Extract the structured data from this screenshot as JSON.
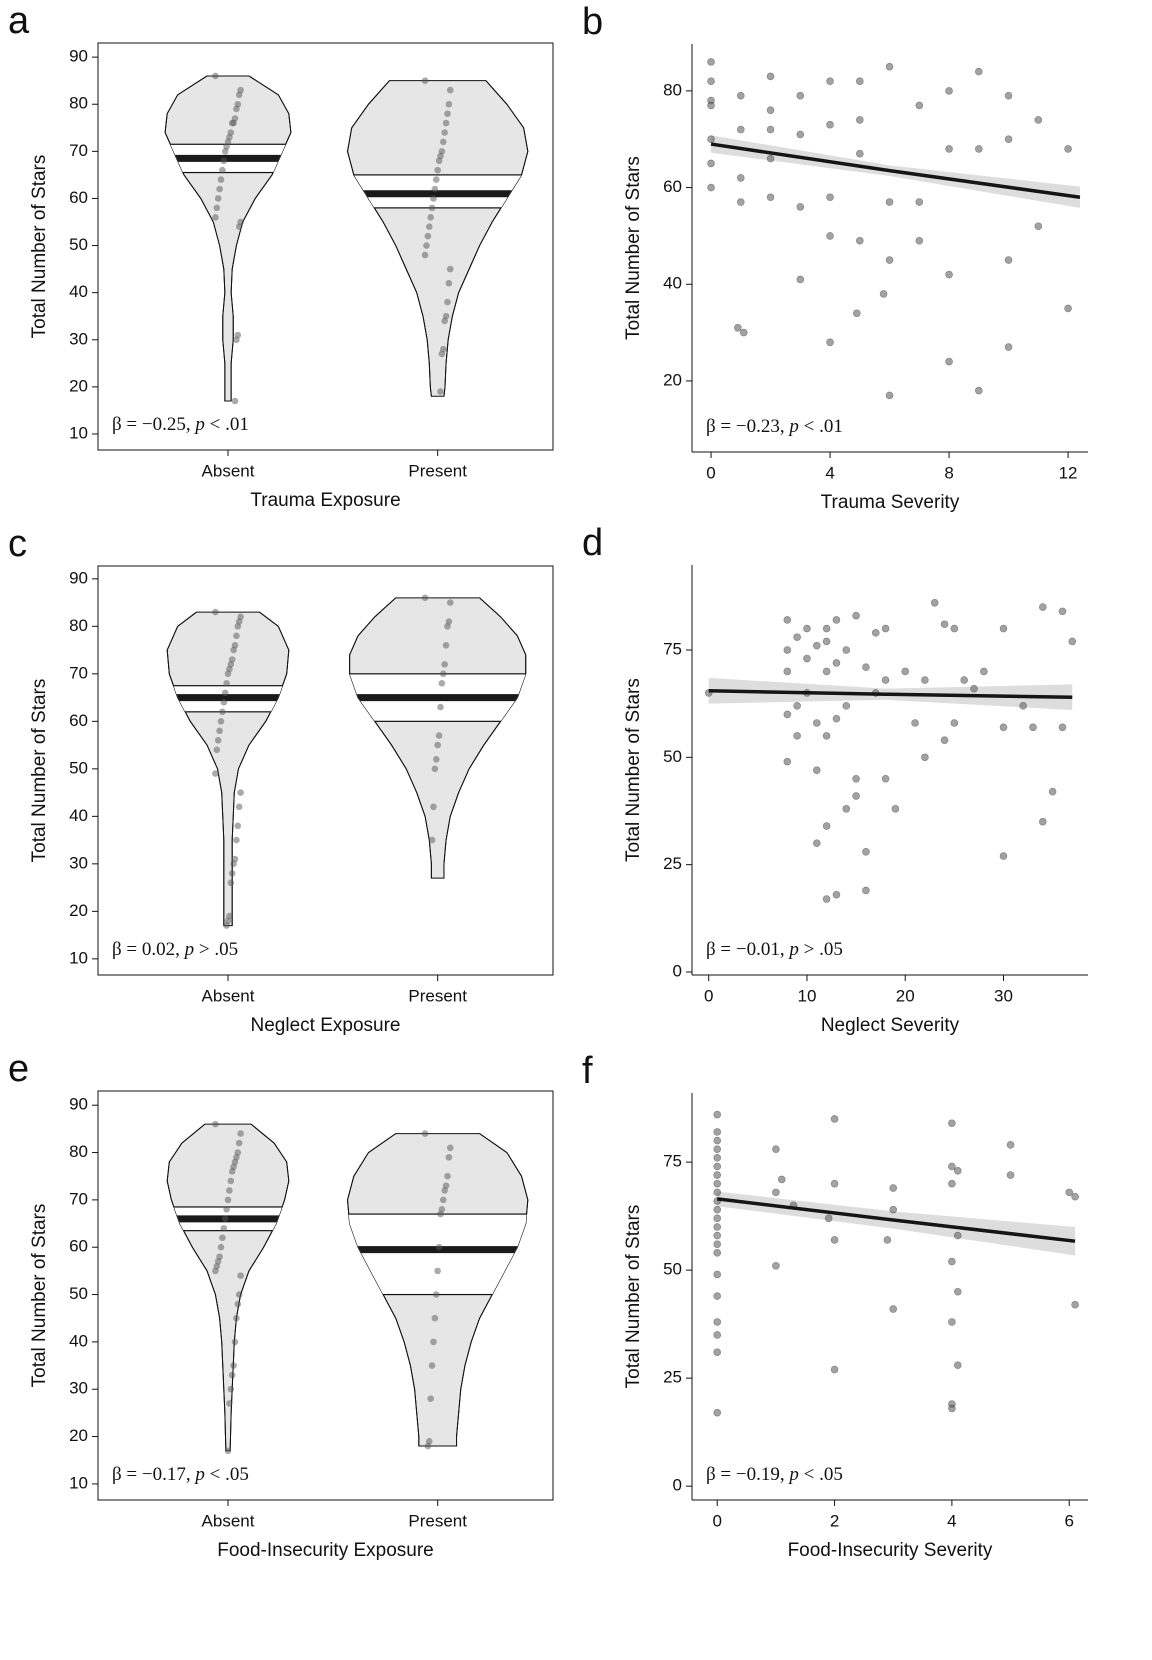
{
  "chart_data": [
    {
      "type": "violin",
      "panel": "a",
      "xlabel": "Trauma Exposure",
      "ylabel": "Total Number of Stars",
      "annotation": [
        "β = −0.25, ",
        "p",
        " < .01"
      ],
      "categories": [
        "Absent",
        "Present"
      ],
      "ylim": [
        6.6,
        93
      ],
      "yticks": [
        10,
        20,
        30,
        40,
        50,
        60,
        70,
        80,
        90
      ],
      "xlim": [
        0.38,
        2.55
      ],
      "violin_color": "#e6e6e6",
      "point_color": "#555555",
      "violins": [
        {
          "profile_y": [
            86,
            82,
            78,
            74,
            70,
            65,
            60,
            55,
            50,
            45,
            40,
            35,
            30,
            25,
            20,
            17
          ],
          "profile_w": [
            0.1,
            0.24,
            0.29,
            0.3,
            0.26,
            0.21,
            0.13,
            0.07,
            0.04,
            0.02,
            0.015,
            0.025,
            0.025,
            0.015,
            0.015,
            0.015
          ],
          "mean": 68.5,
          "ci": [
            65.5,
            71.5
          ],
          "points": [
            86,
            83,
            82,
            80,
            79,
            77,
            76,
            76,
            74,
            73,
            72,
            71,
            70,
            68,
            66,
            64,
            62,
            60,
            58,
            56,
            55,
            54,
            31,
            30,
            17
          ]
        },
        {
          "profile_y": [
            85,
            80,
            75,
            70,
            65,
            60,
            55,
            50,
            45,
            40,
            35,
            30,
            25,
            20,
            18
          ],
          "profile_w": [
            0.23,
            0.33,
            0.41,
            0.43,
            0.4,
            0.33,
            0.26,
            0.2,
            0.15,
            0.1,
            0.07,
            0.05,
            0.04,
            0.035,
            0.03
          ],
          "mean": 61,
          "ci": [
            58,
            65
          ],
          "points": [
            85,
            83,
            80,
            78,
            76,
            74,
            72,
            70,
            69,
            68,
            66,
            64,
            62,
            60,
            58,
            56,
            54,
            52,
            50,
            48,
            45,
            42,
            38,
            35,
            34,
            28,
            27,
            19
          ]
        }
      ]
    },
    {
      "type": "scatter",
      "panel": "b",
      "xlabel": "Trauma Severity",
      "ylabel": "Total Number of Stars",
      "annotation": [
        "β = −0.23, ",
        "p",
        " < .01"
      ],
      "xlim": [
        -0.64,
        12.67
      ],
      "xticks": [
        0,
        4,
        8,
        12
      ],
      "ylim": [
        5.3,
        89.7
      ],
      "yticks": [
        20,
        40,
        60,
        80
      ],
      "point_color": "#555555",
      "band_color": "#d4d4d4",
      "x": [
        0,
        0,
        0,
        0,
        0,
        0,
        0,
        1,
        1,
        1,
        1,
        0.9,
        1.1,
        2,
        2,
        2,
        2,
        2,
        3,
        3,
        3,
        3,
        4,
        4,
        4,
        4,
        4,
        5,
        5,
        5,
        5,
        5.8,
        4.9,
        6,
        6,
        6,
        6,
        7,
        7,
        7,
        8,
        8,
        8,
        8,
        9,
        9,
        9,
        10,
        10,
        10,
        10,
        11,
        11,
        12,
        12
      ],
      "y": [
        82,
        78,
        70,
        65,
        60,
        86,
        77,
        79,
        72,
        62,
        57,
        31,
        30,
        83,
        76,
        72,
        66,
        58,
        79,
        71,
        56,
        41,
        82,
        73,
        58,
        50,
        28,
        82,
        74,
        67,
        49,
        38,
        34,
        85,
        57,
        45,
        17,
        77,
        57,
        49,
        80,
        68,
        42,
        24,
        84,
        68,
        18,
        79,
        70,
        45,
        27,
        74,
        52,
        68,
        35
      ],
      "fit": {
        "x": [
          0,
          6,
          12.4
        ],
        "y": [
          69,
          63.5,
          58
        ],
        "lower": [
          67.2,
          62.4,
          55.8
        ],
        "upper": [
          70.8,
          64.6,
          60.2
        ]
      }
    },
    {
      "type": "violin",
      "panel": "c",
      "xlabel": "Neglect Exposure",
      "ylabel": "Total Number of Stars",
      "annotation": [
        "β = 0.02, ",
        "p",
        " > .05"
      ],
      "categories": [
        "Absent",
        "Present"
      ],
      "ylim": [
        6.6,
        92.7
      ],
      "yticks": [
        10,
        20,
        30,
        40,
        50,
        60,
        70,
        80,
        90
      ],
      "xlim": [
        0.38,
        2.55
      ],
      "violin_color": "#e6e6e6",
      "point_color": "#555555",
      "violins": [
        {
          "profile_y": [
            83,
            80,
            75,
            70,
            65,
            60,
            55,
            50,
            45,
            40,
            35,
            30,
            25,
            20,
            17
          ],
          "profile_w": [
            0.15,
            0.24,
            0.29,
            0.28,
            0.24,
            0.18,
            0.1,
            0.05,
            0.03,
            0.025,
            0.02,
            0.02,
            0.02,
            0.02,
            0.02
          ],
          "mean": 65,
          "ci": [
            62,
            67.5
          ],
          "points": [
            83,
            82,
            81,
            80,
            78,
            76,
            75,
            73,
            72,
            71,
            70,
            68,
            66,
            64,
            62,
            60,
            58,
            56,
            54,
            49,
            45,
            42,
            38,
            35,
            31,
            30,
            28,
            26,
            19,
            18,
            17
          ]
        },
        {
          "profile_y": [
            86,
            82,
            78,
            74,
            70,
            65,
            60,
            55,
            50,
            45,
            40,
            35,
            30,
            27
          ],
          "profile_w": [
            0.2,
            0.3,
            0.38,
            0.42,
            0.42,
            0.38,
            0.3,
            0.22,
            0.15,
            0.1,
            0.06,
            0.04,
            0.03,
            0.03
          ],
          "mean": 65,
          "ci": [
            60,
            70
          ],
          "points": [
            86,
            85,
            81,
            80,
            76,
            72,
            70,
            68,
            63,
            57,
            55,
            52,
            50,
            42,
            35
          ]
        }
      ]
    },
    {
      "type": "scatter",
      "panel": "d",
      "xlabel": "Neglect Severity",
      "ylabel": "Total Number of Stars",
      "annotation": [
        "β = −0.01, ",
        "p",
        " > .05"
      ],
      "xlim": [
        -1.7,
        38.6
      ],
      "xticks": [
        0,
        10,
        20,
        30
      ],
      "ylim": [
        -0.7,
        94.8
      ],
      "yticks": [
        0,
        25,
        50,
        75
      ],
      "point_color": "#555555",
      "band_color": "#d4d4d4",
      "x": [
        0,
        8,
        8,
        8,
        8,
        8,
        9,
        9,
        9,
        10,
        10,
        10,
        11,
        11,
        11,
        11,
        12,
        12,
        12,
        12,
        12,
        12,
        13,
        13,
        13,
        13,
        14,
        14,
        14,
        15,
        15,
        15,
        16,
        16,
        16,
        17,
        17,
        18,
        18,
        18,
        19,
        20,
        21,
        22,
        22,
        23,
        24,
        24,
        25,
        25,
        26,
        27,
        28,
        30,
        30,
        30,
        32,
        33,
        34,
        34,
        35,
        36,
        36,
        37
      ],
      "y": [
        65,
        82,
        75,
        70,
        60,
        49,
        78,
        62,
        55,
        80,
        73,
        65,
        76,
        58,
        47,
        30,
        80,
        77,
        70,
        55,
        34,
        17,
        82,
        72,
        59,
        18,
        75,
        62,
        38,
        83,
        45,
        41,
        71,
        28,
        19,
        79,
        65,
        80,
        68,
        45,
        38,
        70,
        58,
        68,
        50,
        86,
        81,
        54,
        80,
        58,
        68,
        66,
        70,
        80,
        57,
        27,
        62,
        57,
        85,
        35,
        42,
        84,
        57,
        77
      ],
      "fit": {
        "x": [
          0,
          18,
          37
        ],
        "y": [
          65.5,
          64.7,
          64
        ],
        "lower": [
          62.5,
          63.4,
          61
        ],
        "upper": [
          68.5,
          66,
          67
        ]
      }
    },
    {
      "type": "violin",
      "panel": "e",
      "xlabel": "Food-Insecurity Exposure",
      "ylabel": "Total Number of Stars",
      "annotation": [
        "β = −0.17, ",
        "p",
        " < .05"
      ],
      "categories": [
        "Absent",
        "Present"
      ],
      "ylim": [
        6.6,
        93
      ],
      "yticks": [
        10,
        20,
        30,
        40,
        50,
        60,
        70,
        80,
        90
      ],
      "xlim": [
        0.38,
        2.55
      ],
      "violin_color": "#e6e6e6",
      "point_color": "#555555",
      "violins": [
        {
          "profile_y": [
            86,
            82,
            78,
            74,
            70,
            65,
            60,
            55,
            50,
            45,
            40,
            35,
            30,
            25,
            20,
            17
          ],
          "profile_w": [
            0.11,
            0.22,
            0.28,
            0.29,
            0.27,
            0.23,
            0.17,
            0.1,
            0.06,
            0.04,
            0.03,
            0.025,
            0.02,
            0.015,
            0.012,
            0.01
          ],
          "mean": 66,
          "ci": [
            63.5,
            68.5
          ],
          "points": [
            86,
            84,
            82,
            80,
            79,
            78,
            77,
            76,
            74,
            72,
            70,
            68,
            66,
            64,
            62,
            60,
            58,
            57,
            56,
            55,
            54,
            50,
            48,
            45,
            40,
            35,
            33,
            30,
            27,
            17
          ]
        },
        {
          "profile_y": [
            84,
            80,
            75,
            70,
            65,
            60,
            55,
            50,
            45,
            40,
            35,
            30,
            25,
            20,
            18
          ],
          "profile_w": [
            0.2,
            0.33,
            0.4,
            0.43,
            0.42,
            0.38,
            0.32,
            0.26,
            0.2,
            0.16,
            0.13,
            0.11,
            0.1,
            0.09,
            0.09
          ],
          "mean": 59.5,
          "ci": [
            50,
            67
          ],
          "points": [
            84,
            81,
            79,
            75,
            73,
            72,
            70,
            68,
            67,
            60,
            55,
            50,
            45,
            40,
            35,
            28,
            19,
            18
          ]
        }
      ]
    },
    {
      "type": "scatter",
      "panel": "f",
      "xlabel": "Food-Insecurity Severity",
      "ylabel": "Total Number of Stars",
      "annotation": [
        "β = −0.19, ",
        "p",
        " < .05"
      ],
      "xlim": [
        -0.43,
        6.32
      ],
      "xticks": [
        0,
        2,
        4,
        6
      ],
      "ylim": [
        -3.2,
        91
      ],
      "yticks": [
        0,
        25,
        50,
        75
      ],
      "point_color": "#555555",
      "band_color": "#d4d4d4",
      "x": [
        0,
        0,
        0,
        0,
        0,
        0,
        0,
        0,
        0,
        0,
        0,
        0,
        0,
        0,
        0,
        0,
        0,
        0,
        0,
        0,
        0,
        0,
        1,
        1,
        1,
        1.1,
        1.3,
        2,
        2,
        2,
        2,
        1.9,
        3,
        3,
        3,
        2.9,
        4,
        4,
        4,
        4,
        4,
        4,
        4.1,
        4.1,
        4.1,
        4.1,
        4,
        5,
        5,
        6,
        6.1,
        6.1
      ],
      "y": [
        86,
        82,
        80,
        78,
        76,
        74,
        72,
        70,
        68,
        66,
        64,
        62,
        60,
        58,
        56,
        54,
        49,
        44,
        38,
        35,
        31,
        17,
        78,
        68,
        51,
        71,
        65,
        85,
        70,
        57,
        27,
        62,
        69,
        64,
        41,
        57,
        84,
        74,
        70,
        52,
        38,
        19,
        73,
        58,
        45,
        28,
        18,
        79,
        72,
        68,
        67,
        42
      ],
      "fit": {
        "x": [
          0,
          3,
          6.1
        ],
        "y": [
          66.5,
          61.6,
          56.7
        ],
        "lower": [
          64.8,
          59.6,
          53.4
        ],
        "upper": [
          68.2,
          63.6,
          60
        ]
      }
    }
  ]
}
